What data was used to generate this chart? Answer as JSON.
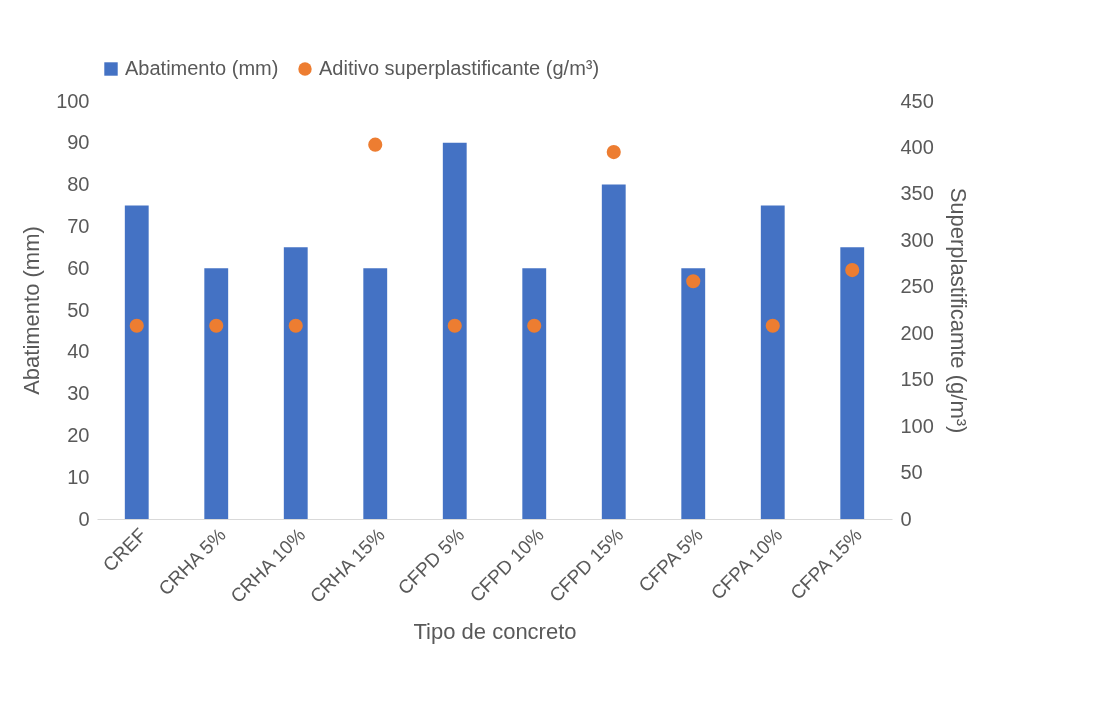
{
  "chart_data": {
    "type": "bar",
    "xlabel": "Tipo de concreto",
    "ylabel": "Abatimento (mm)",
    "y2label": "Superplastificamte (g/m³)",
    "categories": [
      "CREF",
      "CRHA 5%",
      "CRHA 10%",
      "CRHA 15%",
      "CFPD 5%",
      "CFPD 10%",
      "CFPD 15%",
      "CFPA 5%",
      "CFPA 10%",
      "CFPA 15%"
    ],
    "series": [
      {
        "name": "Abatimento (mm)",
        "color": "#4472c4",
        "values": [
          75,
          60,
          65,
          60,
          90,
          60,
          80,
          60,
          75,
          65
        ]
      },
      {
        "name": "Aditivo superplastificante (g/m³)",
        "type": "scatter",
        "axis": "y2",
        "marker": "circle",
        "color": "#ed7d31",
        "values": [
          208,
          208,
          208,
          403,
          208,
          208,
          395,
          256,
          208,
          268
        ]
      }
    ],
    "ylim": [
      0,
      100
    ],
    "yticks": [
      0,
      10,
      20,
      30,
      40,
      50,
      60,
      70,
      80,
      90,
      100
    ],
    "y2lim": [
      0,
      450
    ],
    "y2ticks": [
      0,
      50,
      100,
      150,
      200,
      250,
      300,
      350,
      400,
      450
    ],
    "legend": "top"
  }
}
